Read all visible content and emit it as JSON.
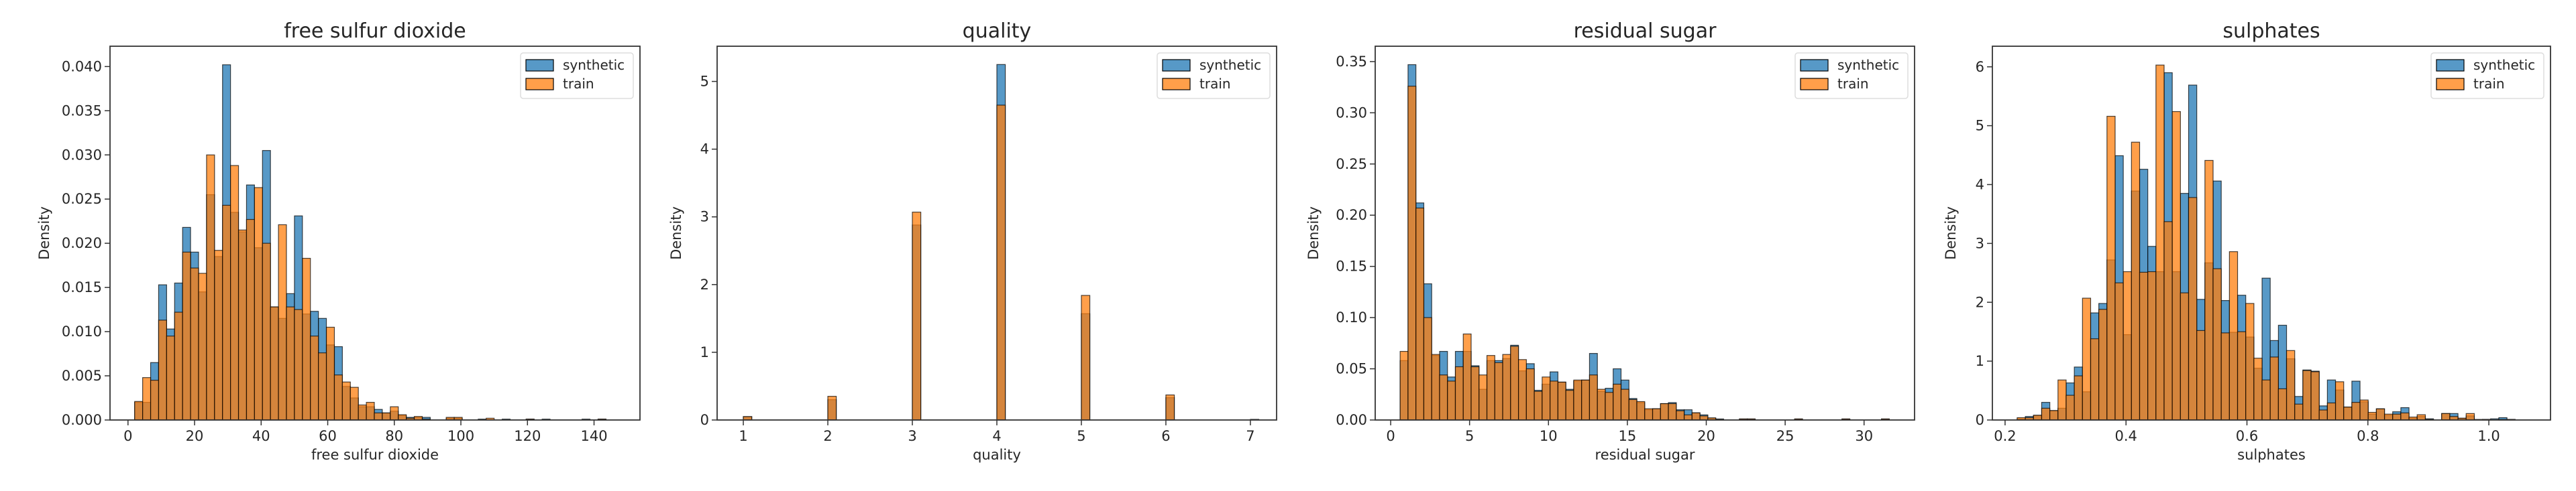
{
  "colors": {
    "synthetic": "#1f77b4",
    "train": "#ff7f0e",
    "edge": "#000000"
  },
  "legend": [
    "synthetic",
    "train"
  ],
  "chart_data": [
    {
      "type": "bar",
      "title": "free sulfur dioxide",
      "xlabel": "free sulfur dioxide",
      "ylabel": "Density",
      "xlim": [
        -5.4,
        153.8
      ],
      "ylim": [
        0,
        0.0423
      ],
      "xticks": [
        0,
        20,
        40,
        60,
        80,
        100,
        120,
        140
      ],
      "xtick_labels": [
        "0",
        "20",
        "40",
        "60",
        "80",
        "100",
        "120",
        "140"
      ],
      "yticks": [
        0,
        0.005,
        0.01,
        0.015,
        0.02,
        0.025,
        0.03,
        0.035,
        0.04
      ],
      "ytick_labels": [
        "0.000",
        "0.005",
        "0.010",
        "0.015",
        "0.020",
        "0.025",
        "0.030",
        "0.035",
        "0.040"
      ],
      "legend_position": "top-right",
      "bin_start": 2,
      "bin_width": 2.4,
      "series": [
        {
          "name": "synthetic",
          "values": [
            0.002,
            0.002,
            0.0065,
            0.0153,
            0.0103,
            0.0155,
            0.0218,
            0.019,
            0.0145,
            0.0255,
            0.0185,
            0.0402,
            0.0235,
            0.0213,
            0.0266,
            0.0195,
            0.0305,
            0.0128,
            0.0115,
            0.0143,
            0.0231,
            0.012,
            0.0123,
            0.0115,
            0.0085,
            0.0083,
            0.0038,
            0.0025,
            0.0015,
            0.0015,
            0.0012,
            0.0008,
            0.001,
            0.0005,
            0.0003,
            0.0003,
            0.0003,
            0,
            0,
            0.0002,
            0.0002,
            0,
            0,
            0.0001,
            0,
            0,
            0.0001,
            0,
            0,
            0.0001,
            0,
            0.0001,
            0,
            0,
            0,
            0,
            0.0001,
            0,
            0.0001,
            0
          ]
        },
        {
          "name": "train",
          "values": [
            0.0021,
            0.0048,
            0.0045,
            0.0113,
            0.0095,
            0.0122,
            0.019,
            0.0172,
            0.0166,
            0.03,
            0.0192,
            0.0243,
            0.0288,
            0.0215,
            0.0227,
            0.0263,
            0.02,
            0.0128,
            0.0221,
            0.0128,
            0.0125,
            0.0183,
            0.0095,
            0.0076,
            0.0105,
            0.0051,
            0.0043,
            0.0037,
            0.0017,
            0.002,
            0.0008,
            0.0008,
            0.0015,
            0.0006,
            0.0002,
            0.0004,
            0.0001,
            0,
            0,
            0.0003,
            0.0003,
            0,
            0,
            0,
            0.0002,
            0,
            0,
            0,
            0,
            0.0001,
            0,
            0,
            0,
            0,
            0,
            0,
            0,
            0,
            0.0001,
            0
          ]
        }
      ]
    },
    {
      "type": "bar",
      "title": "quality",
      "xlabel": "quality",
      "ylabel": "Density",
      "xlim": [
        0.69,
        7.31
      ],
      "ylim": [
        0,
        5.52
      ],
      "xticks": [
        1,
        2,
        3,
        4,
        5,
        6,
        7
      ],
      "xtick_labels": [
        "1",
        "2",
        "3",
        "4",
        "5",
        "6",
        "7"
      ],
      "yticks": [
        0,
        1,
        2,
        3,
        4,
        5
      ],
      "ytick_labels": [
        "0",
        "1",
        "2",
        "3",
        "4",
        "5"
      ],
      "legend_position": "top-right",
      "bin_width": 0.1,
      "bin_starts": [
        1,
        2,
        3,
        4,
        5,
        6,
        7
      ],
      "series": [
        {
          "name": "synthetic",
          "values": [
            0.05,
            0.3,
            2.88,
            5.25,
            1.57,
            0.33,
            0.01
          ]
        },
        {
          "name": "train",
          "values": [
            0.05,
            0.35,
            3.07,
            4.65,
            1.84,
            0.37,
            0.0
          ]
        }
      ]
    },
    {
      "type": "bar",
      "title": "residual sugar",
      "xlabel": "residual sugar",
      "ylabel": "Density",
      "xlim": [
        -0.98,
        33.2
      ],
      "ylim": [
        0,
        0.365
      ],
      "xticks": [
        0,
        5,
        10,
        15,
        20,
        25,
        30
      ],
      "xtick_labels": [
        "0",
        "5",
        "10",
        "15",
        "20",
        "25",
        "30"
      ],
      "yticks": [
        0,
        0.05,
        0.1,
        0.15,
        0.2,
        0.25,
        0.3,
        0.35
      ],
      "ytick_labels": [
        "0.00",
        "0.05",
        "0.10",
        "0.15",
        "0.20",
        "0.25",
        "0.30",
        "0.35"
      ],
      "legend_position": "top-right",
      "bin_start": 0.6,
      "bin_width": 0.5,
      "series": [
        {
          "name": "synthetic",
          "values": [
            0.058,
            0.347,
            0.212,
            0.133,
            0.063,
            0.067,
            0.042,
            0.067,
            0.067,
            0.053,
            0.03,
            0.058,
            0.058,
            0.06,
            0.073,
            0.048,
            0.055,
            0.029,
            0.035,
            0.047,
            0.037,
            0.03,
            0.038,
            0.039,
            0.065,
            0.028,
            0.031,
            0.05,
            0.039,
            0.021,
            0.017,
            0.01,
            0.011,
            0.016,
            0.017,
            0.01,
            0.01,
            0.007,
            0.005,
            0.002,
            0.001,
            0,
            0,
            0.001,
            0.001,
            0,
            0,
            0,
            0,
            0,
            0.001,
            0,
            0,
            0,
            0,
            0,
            0.001,
            0,
            0,
            0,
            0,
            0.001
          ]
        },
        {
          "name": "train",
          "values": [
            0.067,
            0.326,
            0.207,
            0.1,
            0.064,
            0.044,
            0.038,
            0.052,
            0.084,
            0.052,
            0.044,
            0.063,
            0.056,
            0.064,
            0.072,
            0.059,
            0.05,
            0.028,
            0.042,
            0.038,
            0.037,
            0.029,
            0.039,
            0.039,
            0.044,
            0.03,
            0.027,
            0.035,
            0.03,
            0.02,
            0.018,
            0.011,
            0.011,
            0.016,
            0.016,
            0.009,
            0.005,
            0.007,
            0.004,
            0.002,
            0.0005,
            0,
            0,
            0.001,
            0.001,
            0,
            0,
            0,
            0,
            0,
            0.001,
            0,
            0,
            0,
            0,
            0,
            0.001,
            0,
            0,
            0,
            0,
            0.001
          ]
        }
      ]
    },
    {
      "type": "bar",
      "title": "sulphates",
      "xlabel": "sulphates",
      "ylabel": "Density",
      "xlim": [
        0.179,
        1.102
      ],
      "ylim": [
        0,
        6.35
      ],
      "xticks": [
        0.2,
        0.4,
        0.6,
        0.8,
        1.0
      ],
      "xtick_labels": [
        "0.2",
        "0.4",
        "0.6",
        "0.8",
        "1.0"
      ],
      "yticks": [
        0,
        1,
        2,
        3,
        4,
        5,
        6
      ],
      "ytick_labels": [
        "0",
        "1",
        "2",
        "3",
        "4",
        "5",
        "6"
      ],
      "legend_position": "top-right",
      "bin_start": 0.22,
      "bin_width": 0.0135,
      "series": [
        {
          "name": "synthetic",
          "values": [
            0.02,
            0.06,
            0.08,
            0.3,
            0.16,
            0.2,
            0.63,
            0.9,
            0.48,
            1.82,
            1.98,
            2.72,
            4.49,
            1.45,
            3.89,
            4.26,
            2.95,
            2.52,
            5.9,
            2.52,
            3.85,
            5.69,
            2.05,
            2.67,
            4.06,
            2.03,
            1.49,
            2.12,
            1.41,
            0.88,
            2.41,
            1.35,
            1.61,
            1.04,
            0.4,
            0.85,
            0.83,
            0.24,
            0.68,
            0.51,
            0.22,
            0.66,
            0.31,
            0.1,
            0.19,
            0.08,
            0.14,
            0.21,
            0.03,
            0.06,
            0.02,
            0,
            0.11,
            0.11,
            0.03,
            0.07,
            0,
            0.01,
            0.02,
            0.04,
            0.01
          ]
        },
        {
          "name": "train",
          "values": [
            0.04,
            0.04,
            0.08,
            0.2,
            0.16,
            0.68,
            0.42,
            0.75,
            2.07,
            1.38,
            1.88,
            5.16,
            2.33,
            2.52,
            4.72,
            2.51,
            2.52,
            6.03,
            3.37,
            5.24,
            2.16,
            3.78,
            1.52,
            4.41,
            2.57,
            1.48,
            2.86,
            1.5,
            1.98,
            1.05,
            0.68,
            1.07,
            0.53,
            1.18,
            0.27,
            0.84,
            0.82,
            0.17,
            0.29,
            0.65,
            0.22,
            0.3,
            0.34,
            0.13,
            0.19,
            0.1,
            0.1,
            0.12,
            0.05,
            0.09,
            0.01,
            0,
            0.11,
            0.06,
            0.03,
            0.11,
            0.01,
            0.01,
            0,
            0.01,
            0.01
          ]
        }
      ]
    }
  ]
}
